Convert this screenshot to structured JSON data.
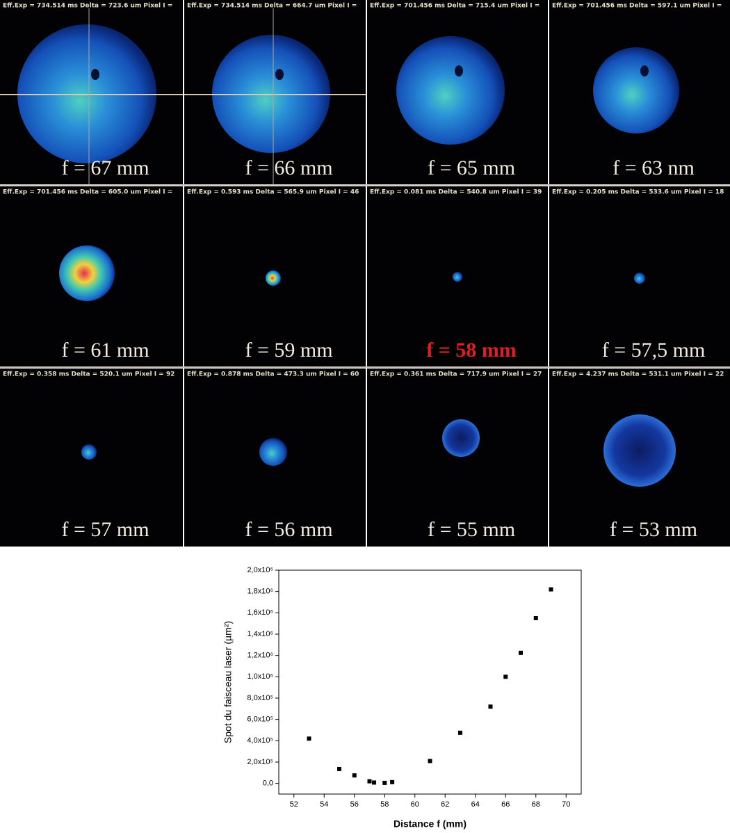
{
  "images": [
    {
      "header": "Eff.Exp = 734.514 ms  Delta = 723.6 um Pixel I =",
      "label": "f = 67 mm"
    },
    {
      "header": "Eff.Exp = 734.514 ms  Delta = 664.7 um Pixel I =",
      "label": "f = 66 mm"
    },
    {
      "header": "Eff.Exp = 701.456 ms  Delta = 715.4 um Pixel I =",
      "label": "f = 65 mm"
    },
    {
      "header": "Eff.Exp = 701.456 ms  Delta = 597.1 um Pixel I =",
      "label": "f = 63 nm"
    },
    {
      "header": "Eff.Exp = 701.456 ms  Delta = 605.0 um Pixel I =",
      "label": "f = 61 mm"
    },
    {
      "header": "Eff.Exp = 0.593 ms  Delta = 565.9 um Pixel I = 46",
      "label": "f = 59 mm"
    },
    {
      "header": "Eff.Exp = 0.081 ms  Delta = 540.8 um Pixel I = 39",
      "label": "f = 58 mm",
      "highlight": true
    },
    {
      "header": "Eff.Exp = 0.205 ms  Delta = 533.6 um Pixel I = 18",
      "label": "f = 57,5 mm"
    },
    {
      "header": "Eff.Exp = 0.358 ms  Delta = 520.1 um Pixel I = 92",
      "label": "f = 57 mm"
    },
    {
      "header": "Eff.Exp = 0.878 ms  Delta = 473.3 um Pixel I = 60",
      "label": "f = 56 mm"
    },
    {
      "header": "Eff.Exp = 0.361 ms  Delta = 717.9 um Pixel I = 27",
      "label": "f = 55 mm"
    },
    {
      "header": "Eff.Exp = 4.237 ms  Delta = 531.1 um Pixel I = 22",
      "label": "f = 53 mm"
    }
  ],
  "chart_data": {
    "type": "scatter",
    "x_label": "Distance f (mm)",
    "y_label": "Spot du faisceau laser (µm²)",
    "x": [
      53,
      55,
      56,
      57,
      57.3,
      58,
      58.5,
      61,
      63,
      65,
      66,
      67,
      68,
      69
    ],
    "values": [
      420000,
      135000,
      75000,
      20000,
      8000,
      5000,
      12000,
      210000,
      475000,
      720000,
      1000000,
      1225000,
      1550000,
      1820000
    ],
    "color": "#000000",
    "xlim": [
      51,
      71
    ],
    "xticks": [
      52,
      54,
      56,
      58,
      60,
      62,
      64,
      66,
      68,
      70
    ],
    "ylim": [
      -100000,
      2000000
    ],
    "yticks": [
      {
        "value": 0,
        "label": "0,0"
      },
      {
        "value": 200000,
        "label": "2,0x10⁵"
      },
      {
        "value": 400000,
        "label": "4,0x10⁵"
      },
      {
        "value": 600000,
        "label": "6,0x10⁵"
      },
      {
        "value": 800000,
        "label": "8,0x10⁵"
      },
      {
        "value": 1000000,
        "label": "1,0x10⁶"
      },
      {
        "value": 1200000,
        "label": "1,2x10⁶"
      },
      {
        "value": 1400000,
        "label": "1,4x10⁶"
      },
      {
        "value": 1600000,
        "label": "1,6x10⁶"
      },
      {
        "value": 1800000,
        "label": "1,8x10⁶"
      },
      {
        "value": 2000000,
        "label": "2,0x10⁶"
      }
    ]
  }
}
